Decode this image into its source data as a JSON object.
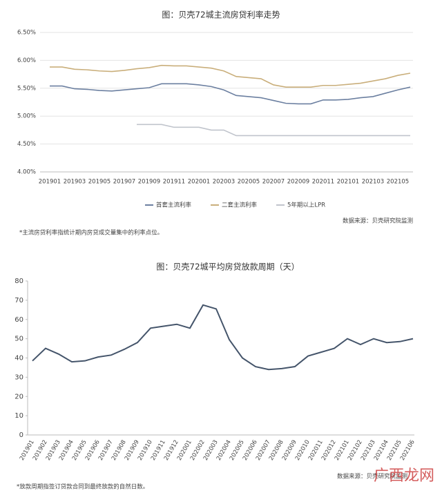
{
  "chart_data": [
    {
      "type": "line",
      "title": "图：贝壳72城主流房贷利率走势",
      "categories": [
        "201901",
        null,
        "201903",
        null,
        "201905",
        null,
        "201907",
        null,
        "201909",
        null,
        "201911",
        null,
        "202001",
        null,
        "202003",
        null,
        "202005",
        null,
        "202007",
        null,
        "202009",
        null,
        "202011",
        null,
        "202101",
        null,
        "202103",
        null,
        "202105",
        null
      ],
      "series": [
        {
          "name": "首套主流利率",
          "color": "#6b7fa0",
          "values": [
            5.54,
            5.54,
            5.49,
            5.48,
            5.46,
            5.45,
            5.47,
            5.49,
            5.51,
            5.58,
            5.58,
            5.58,
            5.56,
            5.53,
            5.47,
            5.37,
            5.35,
            5.33,
            5.28,
            5.23,
            5.22,
            5.22,
            5.29,
            5.29,
            5.3,
            5.33,
            5.35,
            5.41,
            5.47,
            5.52
          ]
        },
        {
          "name": "二套主流利率",
          "color": "#c9ae7a",
          "values": [
            5.88,
            5.88,
            5.84,
            5.83,
            5.81,
            5.8,
            5.82,
            5.85,
            5.87,
            5.91,
            5.9,
            5.9,
            5.88,
            5.86,
            5.81,
            5.71,
            5.69,
            5.67,
            5.56,
            5.52,
            5.52,
            5.52,
            5.55,
            5.55,
            5.57,
            5.59,
            5.63,
            5.67,
            5.73,
            5.77
          ]
        },
        {
          "name": "5年期以上LPR",
          "color": "#c0c4cc",
          "values": [
            null,
            null,
            null,
            null,
            null,
            null,
            null,
            4.85,
            4.85,
            4.85,
            4.8,
            4.8,
            4.8,
            4.75,
            4.75,
            4.65,
            4.65,
            4.65,
            4.65,
            4.65,
            4.65,
            4.65,
            4.65,
            4.65,
            4.65,
            4.65,
            4.65,
            4.65,
            4.65,
            4.65
          ]
        }
      ],
      "ylim": [
        4.0,
        6.5
      ],
      "yticks": [
        {
          "value": 4.0,
          "label": "4.00%"
        },
        {
          "value": 4.5,
          "label": "4.50%"
        },
        {
          "value": 5.0,
          "label": "5.00%"
        },
        {
          "value": 5.5,
          "label": "5.50%"
        },
        {
          "value": 6.0,
          "label": "6.00%"
        },
        {
          "value": 6.5,
          "label": "6.50%"
        }
      ],
      "grid": true,
      "legend": "bottom",
      "source": "数据来源：贝壳研究院监测",
      "footnote": "*主流房贷利率指统计期内房贷成交量集中的利率点位。"
    },
    {
      "type": "line",
      "title": "图：贝壳72城平均房贷放款周期（天）",
      "categories": [
        "201901",
        "201902",
        "201903",
        "201904",
        "201905",
        "201906",
        "201907",
        "201908",
        "201909",
        "201910",
        "201911",
        "201912",
        "202001",
        "202002",
        "202003",
        "202004",
        "202005",
        "202006",
        "202007",
        "202008",
        "202009",
        "202010",
        "202011",
        "202012",
        "202101",
        "202102",
        "202103",
        "202104",
        "202105",
        "202106"
      ],
      "series": [
        {
          "name": "平均房贷放款周期",
          "color": "#44546a",
          "values": [
            38.5,
            45,
            42,
            38,
            38.5,
            40.5,
            41.5,
            44.5,
            48,
            55.5,
            56.5,
            57.5,
            55.5,
            67.5,
            65.5,
            49.5,
            40,
            35.5,
            34,
            34.5,
            35.5,
            41,
            43,
            45,
            50,
            47,
            50,
            48,
            48.5,
            50
          ]
        }
      ],
      "ylim": [
        0,
        80
      ],
      "yticks": [
        0,
        10,
        20,
        30,
        40,
        50,
        60,
        70,
        80
      ],
      "grid": false,
      "source": "数据来源：贝壳研究院监测",
      "watermark": "广西龙网",
      "footnote": "*放款周期指签订贷款合同到最终放款的自然日数。"
    }
  ]
}
